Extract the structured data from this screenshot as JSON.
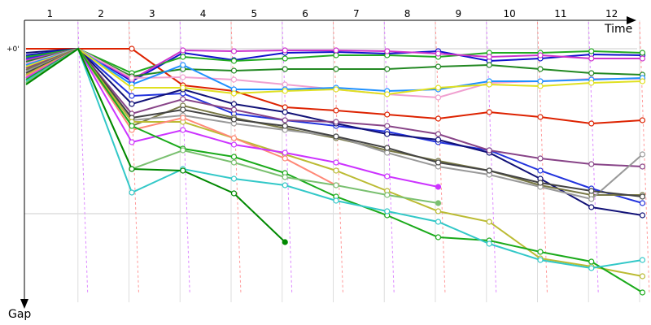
{
  "chart_data": {
    "type": "line",
    "x_axis_label": "Time",
    "y_axis_label": "Gap",
    "zero_label": "+0'",
    "laps": [
      "1",
      "2",
      "3",
      "4",
      "5",
      "6",
      "7",
      "8",
      "9",
      "10",
      "11",
      "12"
    ],
    "y_direction": "down",
    "grid": true,
    "gap_scale_note": "gap in unlabeled units, 0 = leader, increasing downward",
    "series": [
      {
        "color": "#dd2200",
        "values": [
          0,
          0,
          0,
          45,
          52,
          72,
          76,
          81,
          86,
          78,
          84,
          92,
          88
        ]
      },
      {
        "color": "#2233dd",
        "values": [
          12,
          0,
          58,
          55,
          80,
          88,
          95,
          102,
          115,
          125,
          150,
          172,
          190
        ]
      },
      {
        "color": "#111177",
        "values": [
          5,
          0,
          68,
          50,
          68,
          78,
          92,
          105,
          112,
          128,
          160,
          195,
          205
        ]
      },
      {
        "color": "#1010cc",
        "values": [
          8,
          0,
          40,
          5,
          14,
          5,
          4,
          6,
          3,
          15,
          12,
          7,
          8
        ]
      },
      {
        "color": "#22aa22",
        "values": [
          10,
          0,
          30,
          10,
          15,
          12,
          8,
          8,
          10,
          5,
          5,
          3,
          5
        ]
      },
      {
        "color": "#cc33cc",
        "values": [
          14,
          0,
          38,
          2,
          3,
          2,
          2,
          3,
          6,
          10,
          8,
          12,
          12
        ]
      },
      {
        "color": "#228822",
        "values": [
          16,
          0,
          34,
          25,
          27,
          25,
          25,
          25,
          22,
          20,
          25,
          30,
          32
        ]
      },
      {
        "color": "#f0a0d0",
        "values": [
          18,
          0,
          36,
          35,
          38,
          44,
          50,
          56,
          60,
          42,
          40,
          37,
          37
        ]
      },
      {
        "color": "#1e90ff",
        "values": [
          20,
          0,
          44,
          20,
          50,
          50,
          48,
          52,
          50,
          40,
          40,
          38,
          36
        ]
      },
      {
        "color": "#e0e020",
        "values": [
          22,
          0,
          48,
          48,
          55,
          52,
          50,
          56,
          48,
          44,
          46,
          42,
          40
        ]
      },
      {
        "color": "#884488",
        "values": [
          24,
          0,
          80,
          62,
          75,
          88,
          90,
          95,
          105,
          125,
          135,
          142,
          145
        ]
      },
      {
        "color": "#777744",
        "values": [
          26,
          0,
          95,
          70,
          85,
          98,
          110,
          125,
          138,
          150,
          168,
          180,
          180
        ]
      },
      {
        "color": "#999999",
        "values": [
          28,
          0,
          88,
          82,
          92,
          100,
          108,
          128,
          145,
          155,
          170,
          185,
          130
        ]
      },
      {
        "color": "#444444",
        "values": [
          30,
          0,
          85,
          75,
          87,
          95,
          108,
          122,
          140,
          150,
          165,
          175,
          182
        ]
      },
      {
        "color": "#bbbb33",
        "values": [
          32,
          0,
          90,
          90,
          110,
          130,
          150,
          175,
          200,
          213,
          258,
          268,
          280
        ]
      },
      {
        "color": "#ff8877",
        "values": [
          34,
          0,
          100,
          85,
          110,
          135,
          168
        ]
      },
      {
        "color": "#cc33ff",
        "values": [
          36,
          0,
          115,
          100,
          118,
          128,
          140,
          157,
          170
        ]
      },
      {
        "color": "#1aaa1a",
        "values": [
          38,
          0,
          95,
          123,
          133,
          153,
          182,
          205,
          232,
          236,
          250,
          262,
          300
        ]
      },
      {
        "color": "#33c8c8",
        "values": [
          40,
          0,
          177,
          148,
          160,
          168,
          187,
          200,
          213,
          240,
          260,
          270,
          260
        ]
      },
      {
        "color": "#7ac070",
        "values": [
          42,
          0,
          148,
          125,
          140,
          158,
          168,
          180,
          190
        ]
      },
      {
        "color": "#008800",
        "values": [
          44,
          0,
          148,
          150,
          178,
          238
        ]
      }
    ]
  }
}
